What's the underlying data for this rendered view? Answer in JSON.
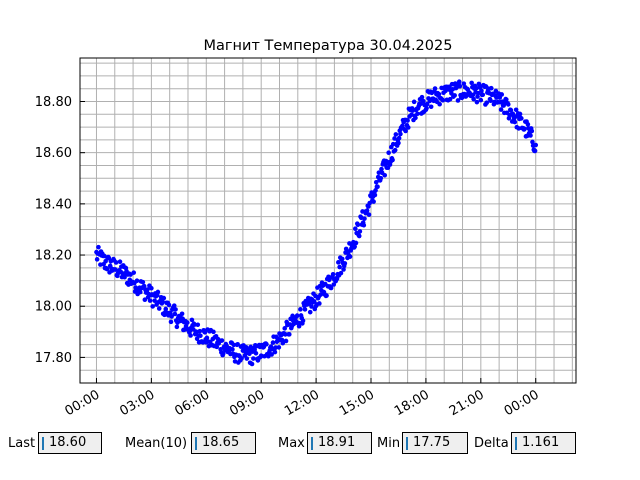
{
  "chart_data": {
    "type": "scatter",
    "title": "Магнит Температура 30.04.2025",
    "xlabel": "",
    "ylabel": "",
    "x_unit": "hours since 00:00 of 30.04.2025",
    "xlim": [
      -0.9,
      26.2
    ],
    "ylim": [
      17.7,
      18.97
    ],
    "x_ticks": [
      0,
      3,
      6,
      9,
      12,
      15,
      18,
      21,
      24
    ],
    "x_tick_labels": [
      "00:00",
      "03:00",
      "06:00",
      "09:00",
      "12:00",
      "15:00",
      "18:00",
      "21:00",
      "00:00"
    ],
    "y_ticks": [
      17.8,
      18.0,
      18.2,
      18.4,
      18.6,
      18.8
    ],
    "y_tick_labels": [
      "17.80",
      "18.00",
      "18.20",
      "18.40",
      "18.60",
      "18.80"
    ],
    "grid": true,
    "series": [
      {
        "name": "",
        "color": "#0000ff",
        "x": [
          0.0,
          0.5,
          1.0,
          1.5,
          2.0,
          2.5,
          3.0,
          3.5,
          4.0,
          4.5,
          5.0,
          5.5,
          6.0,
          6.5,
          7.0,
          7.5,
          8.0,
          8.5,
          9.0,
          9.5,
          10.0,
          10.5,
          11.0,
          11.5,
          12.0,
          12.5,
          13.0,
          13.5,
          14.0,
          14.5,
          15.0,
          15.5,
          16.0,
          16.5,
          17.0,
          17.5,
          18.0,
          18.5,
          19.0,
          19.5,
          20.0,
          20.5,
          21.0,
          21.5,
          22.0,
          22.5,
          23.0,
          23.5,
          24.0
        ],
        "y": [
          18.2,
          18.17,
          18.15,
          18.13,
          18.1,
          18.07,
          18.04,
          18.01,
          17.98,
          17.95,
          17.92,
          17.9,
          17.88,
          17.86,
          17.84,
          17.82,
          17.81,
          17.81,
          17.82,
          17.84,
          17.87,
          17.91,
          17.95,
          17.99,
          18.03,
          18.07,
          18.12,
          18.18,
          18.25,
          18.33,
          18.41,
          18.5,
          18.58,
          18.66,
          18.73,
          18.78,
          18.8,
          18.82,
          18.83,
          18.84,
          18.84,
          18.84,
          18.83,
          18.82,
          18.8,
          18.77,
          18.73,
          18.69,
          18.63
        ]
      }
    ]
  },
  "stats": {
    "last_label": "Last",
    "last_value": "18.60",
    "mean_label": "Mean(10)",
    "mean_value": "18.65",
    "max_label": "Max",
    "max_value": "18.91",
    "min_label": "Min",
    "min_value": "17.75",
    "delta_label": "Delta",
    "delta_value": "1.161"
  }
}
